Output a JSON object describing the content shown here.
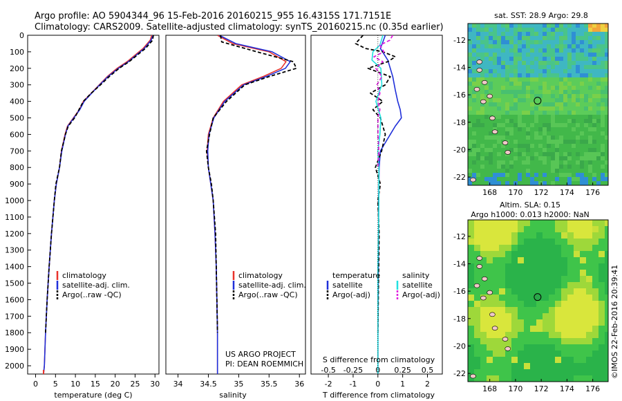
{
  "header": {
    "line1": "Argo profile: AO 5904344_96 15-Feb-2016 20160215_955 16.4315S 171.7151E",
    "line2": "Climatology: CARS2009. Satellite-adjusted climatology: synTS_20160215.nc (0.35d earlier)"
  },
  "colors": {
    "climatology": "#e8322b",
    "satellite": "#1f2fd9",
    "argo": "#000000",
    "sat_salinity": "#22e0e0",
    "argo_salinity": "#e020e0"
  },
  "chart_data": [
    {
      "type": "line",
      "name": "temperature",
      "xlabel": "temperature (deg C)",
      "xlim": [
        -2,
        31
      ],
      "xticks": [
        "0",
        "5",
        "10",
        "15",
        "20",
        "25",
        "30"
      ],
      "ylim": [
        0,
        2050
      ],
      "yticks": [
        "0",
        "100",
        "200",
        "300",
        "400",
        "500",
        "600",
        "700",
        "800",
        "900",
        "1000",
        "1100",
        "1200",
        "1300",
        "1400",
        "1500",
        "1600",
        "1700",
        "1800",
        "1900",
        "2000"
      ],
      "legend": [
        "climatology",
        "satellite-adj. clim.",
        "Argo(..raw -QC)"
      ],
      "series": [
        {
          "name": "climatology",
          "x": [
            29.2,
            28.8,
            27,
            23,
            20.5,
            18,
            16,
            14,
            12,
            11,
            9.5,
            8,
            7.4,
            6.5,
            6,
            5.2,
            4.7,
            4,
            3.4,
            2.9,
            2.5,
            2.2,
            2
          ],
          "y": [
            0,
            30,
            80,
            160,
            200,
            250,
            300,
            350,
            400,
            450,
            500,
            550,
            600,
            700,
            800,
            900,
            1000,
            1200,
            1400,
            1600,
            1800,
            2000,
            2050
          ]
        },
        {
          "name": "satellite-adj. clim.",
          "x": [
            29.5,
            29,
            27.3,
            23.3,
            20.8,
            18.2,
            16.1,
            14.1,
            12.2,
            11.1,
            9.6,
            8.1,
            7.5,
            6.6,
            6,
            5.2,
            4.7,
            4,
            3.4,
            2.9,
            2.5,
            2.2,
            2
          ],
          "y": [
            0,
            30,
            80,
            160,
            200,
            250,
            300,
            350,
            400,
            450,
            500,
            550,
            600,
            700,
            800,
            900,
            1000,
            1200,
            1400,
            1600,
            1800,
            2000,
            2050
          ]
        },
        {
          "name": "Argo(..raw -QC)",
          "x": [
            29.6,
            29.4,
            27.6,
            23.5,
            21,
            18.5,
            16.3,
            14,
            12,
            10.9,
            9.8,
            8.2,
            7.5,
            6.5,
            6,
            5.1,
            4.7,
            4,
            3.4,
            2.9,
            2.5
          ],
          "y": [
            0,
            30,
            80,
            160,
            200,
            250,
            300,
            350,
            400,
            450,
            500,
            550,
            600,
            700,
            800,
            900,
            1000,
            1200,
            1400,
            1600,
            1800
          ]
        }
      ]
    },
    {
      "type": "line",
      "name": "salinity",
      "xlabel": "salinity",
      "xlim": [
        33.8,
        36.1
      ],
      "xticks": [
        "34",
        "34.5",
        "35",
        "35.5",
        "36"
      ],
      "ylim": [
        0,
        2050
      ],
      "legend": [
        "climatology",
        "satellite-adj. clim.",
        "Argo(..raw -QC)"
      ],
      "annotation": [
        "US ARGO PROJECT",
        "PI: DEAN ROEMMICH"
      ],
      "series": [
        {
          "name": "climatology",
          "x": [
            34.65,
            34.9,
            35.5,
            35.78,
            35.7,
            35.4,
            35.05,
            34.75,
            34.58,
            34.5,
            34.48,
            34.5,
            34.54,
            34.58,
            34.61,
            34.63,
            34.64,
            34.65,
            34.65
          ],
          "y": [
            0,
            50,
            100,
            160,
            200,
            250,
            300,
            400,
            500,
            600,
            700,
            800,
            900,
            1000,
            1200,
            1400,
            1600,
            1800,
            2050
          ]
        },
        {
          "name": "satellite-adj. clim.",
          "x": [
            34.68,
            34.95,
            35.55,
            35.85,
            35.77,
            35.45,
            35.08,
            34.77,
            34.59,
            34.51,
            34.49,
            34.5,
            34.54,
            34.58,
            34.61,
            34.63,
            34.64,
            34.65,
            34.65
          ],
          "y": [
            0,
            50,
            100,
            160,
            200,
            250,
            300,
            400,
            500,
            600,
            700,
            800,
            900,
            1000,
            1200,
            1400,
            1600,
            1800,
            2050
          ]
        },
        {
          "name": "Argo(..raw -QC)",
          "x": [
            34.7,
            34.72,
            35.3,
            35.6,
            35.9,
            35.95,
            35.5,
            35.1,
            34.8,
            34.58,
            34.52,
            34.47,
            34.5,
            34.55,
            34.58,
            34.62,
            34.63,
            34.64,
            34.65
          ],
          "y": [
            0,
            40,
            100,
            130,
            160,
            200,
            250,
            300,
            400,
            500,
            600,
            700,
            800,
            900,
            1000,
            1200,
            1400,
            1600,
            1800
          ]
        }
      ]
    },
    {
      "type": "line",
      "name": "difference",
      "xlabel": "T difference from climatology",
      "xlabel2": "S difference from climatology",
      "xlim": [
        -2.7,
        2.6
      ],
      "xticks": [
        "-2",
        "-1",
        "0",
        "1",
        "2"
      ],
      "xticks2": [
        "-0.5",
        "-0.25",
        "0",
        "0.25",
        "0.5"
      ],
      "ylim": [
        0,
        2050
      ],
      "legend_temperature": [
        "temperature",
        "satellite",
        "Argo(-adj)"
      ],
      "legend_salinity": [
        "salinity",
        "satellite",
        "Argo(-adj)"
      ],
      "series": [
        {
          "name": "T satellite",
          "x": [
            0.3,
            0.2,
            0.1,
            0.4,
            0.6,
            0.7,
            0.8,
            0.9,
            0.95,
            0.7,
            0.5,
            0.3,
            0.1,
            0.05,
            0.03,
            0.02,
            0,
            0
          ],
          "y": [
            0,
            40,
            80,
            150,
            250,
            330,
            400,
            450,
            500,
            550,
            600,
            650,
            700,
            800,
            1000,
            1400,
            1800,
            2050
          ]
        },
        {
          "name": "T Argo(-adj)",
          "x": [
            -0.6,
            -0.9,
            -0.5,
            0.2,
            0.7,
            0.4,
            -0.4,
            0.5,
            0.3,
            -0.3,
            0.2,
            -0.2,
            0.1,
            0.3,
            0.15,
            -0.1,
            0.1,
            0,
            0.05,
            0
          ],
          "y": [
            0,
            50,
            80,
            100,
            130,
            160,
            200,
            250,
            300,
            350,
            400,
            450,
            500,
            600,
            700,
            800,
            900,
            1000,
            1200,
            1800
          ]
        },
        {
          "name": "S satellite",
          "x": [
            0.05,
            0.02,
            -0.05,
            -0.06,
            0.03,
            0.04,
            -0.02,
            0.03,
            0.02,
            0,
            0.01,
            0.01,
            0,
            0,
            0
          ],
          "y": [
            0,
            60,
            100,
            150,
            200,
            300,
            400,
            500,
            600,
            700,
            800,
            1000,
            1400,
            1800,
            2050
          ]
        },
        {
          "name": "S Argo(-adj)",
          "x": [
            0.15,
            0.12,
            0.02,
            0.06,
            -0.04,
            0.05,
            -0.02,
            0.04,
            -0.01,
            0.02,
            0,
            0.02,
            0,
            0,
            0.01,
            0
          ],
          "y": [
            0,
            30,
            60,
            100,
            130,
            160,
            200,
            250,
            300,
            350,
            400,
            450,
            500,
            600,
            700,
            800
          ]
        }
      ]
    },
    {
      "type": "heatmap",
      "name": "sst-map",
      "title": "sat. SST: 28.9  Argo: 29.8",
      "xticks": [
        "168",
        "170",
        "172",
        "174",
        "176"
      ],
      "yticks": [
        "-12",
        "-14",
        "-16",
        "-18",
        "-20",
        "-22"
      ],
      "xlim": [
        166.3,
        177.2
      ],
      "ylim": [
        -22.6,
        -10.8
      ],
      "argo_position": {
        "lon": 171.7151,
        "lat": -16.4315
      }
    },
    {
      "type": "heatmap",
      "name": "sla-map",
      "title": "Altim. SLA: 0.15",
      "subtitle": "Argo h1000: 0.013 h2000: NaN",
      "xticks": [
        "168",
        "170",
        "172",
        "174",
        "176"
      ],
      "yticks": [
        "-12",
        "-14",
        "-16",
        "-18",
        "-20",
        "-22"
      ],
      "xlim": [
        166.3,
        177.2
      ],
      "ylim": [
        -22.6,
        -10.8
      ],
      "argo_position": {
        "lon": 171.7151,
        "lat": -16.4315
      }
    }
  ],
  "credit": "©IMOS 22-Feb-2016 20:39:41"
}
